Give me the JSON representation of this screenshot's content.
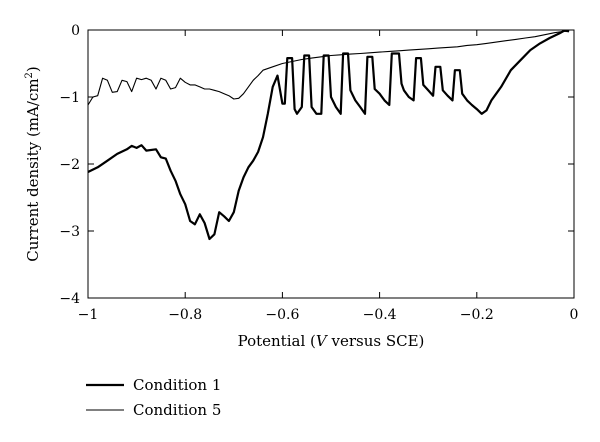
{
  "chart_data": {
    "type": "line",
    "title": "",
    "xlabel": {
      "prefix": "Potential (",
      "var": "V",
      "suffix": " versus SCE)"
    },
    "ylabel": {
      "base": "Current density (mA/cm",
      "sup": "2",
      "close": ")"
    },
    "xlim": [
      -1,
      0
    ],
    "ylim": [
      -4,
      0
    ],
    "xticks": [
      {
        "value": -1,
        "label": "−1"
      },
      {
        "value": -0.8,
        "label": "−0.8"
      },
      {
        "value": -0.6,
        "label": "−0.6"
      },
      {
        "value": -0.4,
        "label": "−0.4"
      },
      {
        "value": -0.2,
        "label": "−0.2"
      },
      {
        "value": 0,
        "label": "0"
      }
    ],
    "yticks": [
      {
        "value": 0,
        "label": "0"
      },
      {
        "value": -1,
        "label": "−1"
      },
      {
        "value": -2,
        "label": "−2"
      },
      {
        "value": -3,
        "label": "−3"
      },
      {
        "value": -4,
        "label": "−4"
      }
    ],
    "grid": false,
    "legend": "bottom-left",
    "color": "#000000",
    "series": [
      {
        "name": "Condition 1",
        "weight": "thick",
        "points": [
          [
            -1.0,
            -2.12
          ],
          [
            -0.98,
            -2.05
          ],
          [
            -0.96,
            -1.95
          ],
          [
            -0.94,
            -1.85
          ],
          [
            -0.92,
            -1.78
          ],
          [
            -0.91,
            -1.73
          ],
          [
            -0.9,
            -1.76
          ],
          [
            -0.89,
            -1.72
          ],
          [
            -0.88,
            -1.8
          ],
          [
            -0.86,
            -1.78
          ],
          [
            -0.85,
            -1.9
          ],
          [
            -0.84,
            -1.92
          ],
          [
            -0.83,
            -2.1
          ],
          [
            -0.82,
            -2.25
          ],
          [
            -0.81,
            -2.45
          ],
          [
            -0.8,
            -2.6
          ],
          [
            -0.79,
            -2.85
          ],
          [
            -0.78,
            -2.9
          ],
          [
            -0.77,
            -2.75
          ],
          [
            -0.76,
            -2.88
          ],
          [
            -0.75,
            -3.12
          ],
          [
            -0.74,
            -3.05
          ],
          [
            -0.73,
            -2.72
          ],
          [
            -0.72,
            -2.78
          ],
          [
            -0.71,
            -2.85
          ],
          [
            -0.7,
            -2.72
          ],
          [
            -0.69,
            -2.4
          ],
          [
            -0.68,
            -2.2
          ],
          [
            -0.67,
            -2.05
          ],
          [
            -0.66,
            -1.95
          ],
          [
            -0.65,
            -1.82
          ],
          [
            -0.64,
            -1.6
          ],
          [
            -0.63,
            -1.25
          ],
          [
            -0.62,
            -0.85
          ],
          [
            -0.61,
            -0.68
          ],
          [
            -0.6,
            -1.1
          ],
          [
            -0.595,
            -1.1
          ],
          [
            -0.59,
            -0.42
          ],
          [
            -0.58,
            -0.42
          ],
          [
            -0.575,
            -1.18
          ],
          [
            -0.57,
            -1.25
          ],
          [
            -0.56,
            -1.15
          ],
          [
            -0.555,
            -0.38
          ],
          [
            -0.545,
            -0.38
          ],
          [
            -0.54,
            -1.15
          ],
          [
            -0.53,
            -1.25
          ],
          [
            -0.52,
            -1.25
          ],
          [
            -0.515,
            -0.38
          ],
          [
            -0.505,
            -0.38
          ],
          [
            -0.5,
            -1.0
          ],
          [
            -0.49,
            -1.15
          ],
          [
            -0.48,
            -1.25
          ],
          [
            -0.475,
            -0.35
          ],
          [
            -0.465,
            -0.35
          ],
          [
            -0.46,
            -0.9
          ],
          [
            -0.45,
            -1.05
          ],
          [
            -0.44,
            -1.15
          ],
          [
            -0.43,
            -1.25
          ],
          [
            -0.425,
            -0.4
          ],
          [
            -0.415,
            -0.4
          ],
          [
            -0.41,
            -0.88
          ],
          [
            -0.4,
            -0.95
          ],
          [
            -0.39,
            -1.05
          ],
          [
            -0.38,
            -1.12
          ],
          [
            -0.375,
            -0.35
          ],
          [
            -0.36,
            -0.35
          ],
          [
            -0.355,
            -0.8
          ],
          [
            -0.35,
            -0.9
          ],
          [
            -0.34,
            -1.0
          ],
          [
            -0.33,
            -1.05
          ],
          [
            -0.325,
            -0.42
          ],
          [
            -0.315,
            -0.42
          ],
          [
            -0.31,
            -0.82
          ],
          [
            -0.3,
            -0.9
          ],
          [
            -0.29,
            -0.98
          ],
          [
            -0.285,
            -0.55
          ],
          [
            -0.275,
            -0.55
          ],
          [
            -0.27,
            -0.9
          ],
          [
            -0.26,
            -0.98
          ],
          [
            -0.25,
            -1.05
          ],
          [
            -0.245,
            -0.6
          ],
          [
            -0.235,
            -0.6
          ],
          [
            -0.23,
            -0.95
          ],
          [
            -0.22,
            -1.05
          ],
          [
            -0.21,
            -1.12
          ],
          [
            -0.2,
            -1.18
          ],
          [
            -0.19,
            -1.25
          ],
          [
            -0.18,
            -1.2
          ],
          [
            -0.17,
            -1.05
          ],
          [
            -0.16,
            -0.95
          ],
          [
            -0.15,
            -0.85
          ],
          [
            -0.13,
            -0.6
          ],
          [
            -0.11,
            -0.45
          ],
          [
            -0.09,
            -0.3
          ],
          [
            -0.07,
            -0.2
          ],
          [
            -0.05,
            -0.12
          ],
          [
            -0.03,
            -0.05
          ],
          [
            -0.02,
            -0.01
          ],
          [
            -0.01,
            -0.02
          ]
        ]
      },
      {
        "name": "Condition 5",
        "weight": "thin",
        "points": [
          [
            -1.0,
            -1.12
          ],
          [
            -0.99,
            -1.0
          ],
          [
            -0.98,
            -0.98
          ],
          [
            -0.97,
            -0.72
          ],
          [
            -0.96,
            -0.75
          ],
          [
            -0.95,
            -0.93
          ],
          [
            -0.94,
            -0.92
          ],
          [
            -0.93,
            -0.75
          ],
          [
            -0.92,
            -0.77
          ],
          [
            -0.91,
            -0.92
          ],
          [
            -0.9,
            -0.72
          ],
          [
            -0.89,
            -0.74
          ],
          [
            -0.88,
            -0.72
          ],
          [
            -0.87,
            -0.75
          ],
          [
            -0.86,
            -0.88
          ],
          [
            -0.85,
            -0.72
          ],
          [
            -0.84,
            -0.75
          ],
          [
            -0.83,
            -0.88
          ],
          [
            -0.82,
            -0.86
          ],
          [
            -0.81,
            -0.72
          ],
          [
            -0.8,
            -0.78
          ],
          [
            -0.79,
            -0.82
          ],
          [
            -0.78,
            -0.82
          ],
          [
            -0.77,
            -0.85
          ],
          [
            -0.76,
            -0.88
          ],
          [
            -0.75,
            -0.88
          ],
          [
            -0.74,
            -0.9
          ],
          [
            -0.73,
            -0.92
          ],
          [
            -0.72,
            -0.95
          ],
          [
            -0.71,
            -0.98
          ],
          [
            -0.7,
            -1.03
          ],
          [
            -0.69,
            -1.02
          ],
          [
            -0.68,
            -0.95
          ],
          [
            -0.67,
            -0.85
          ],
          [
            -0.66,
            -0.75
          ],
          [
            -0.65,
            -0.68
          ],
          [
            -0.64,
            -0.6
          ],
          [
            -0.62,
            -0.55
          ],
          [
            -0.6,
            -0.5
          ],
          [
            -0.58,
            -0.47
          ],
          [
            -0.56,
            -0.44
          ],
          [
            -0.54,
            -0.42
          ],
          [
            -0.52,
            -0.4
          ],
          [
            -0.5,
            -0.38
          ],
          [
            -0.48,
            -0.37
          ],
          [
            -0.46,
            -0.36
          ],
          [
            -0.44,
            -0.35
          ],
          [
            -0.42,
            -0.34
          ],
          [
            -0.4,
            -0.33
          ],
          [
            -0.38,
            -0.32
          ],
          [
            -0.36,
            -0.31
          ],
          [
            -0.34,
            -0.3
          ],
          [
            -0.32,
            -0.29
          ],
          [
            -0.3,
            -0.28
          ],
          [
            -0.28,
            -0.27
          ],
          [
            -0.26,
            -0.26
          ],
          [
            -0.24,
            -0.25
          ],
          [
            -0.22,
            -0.23
          ],
          [
            -0.2,
            -0.22
          ],
          [
            -0.18,
            -0.2
          ],
          [
            -0.16,
            -0.18
          ],
          [
            -0.14,
            -0.16
          ],
          [
            -0.12,
            -0.14
          ],
          [
            -0.1,
            -0.12
          ],
          [
            -0.08,
            -0.1
          ],
          [
            -0.06,
            -0.07
          ],
          [
            -0.04,
            -0.04
          ],
          [
            -0.02,
            -0.02
          ],
          [
            -0.01,
            -0.01
          ]
        ]
      }
    ]
  }
}
